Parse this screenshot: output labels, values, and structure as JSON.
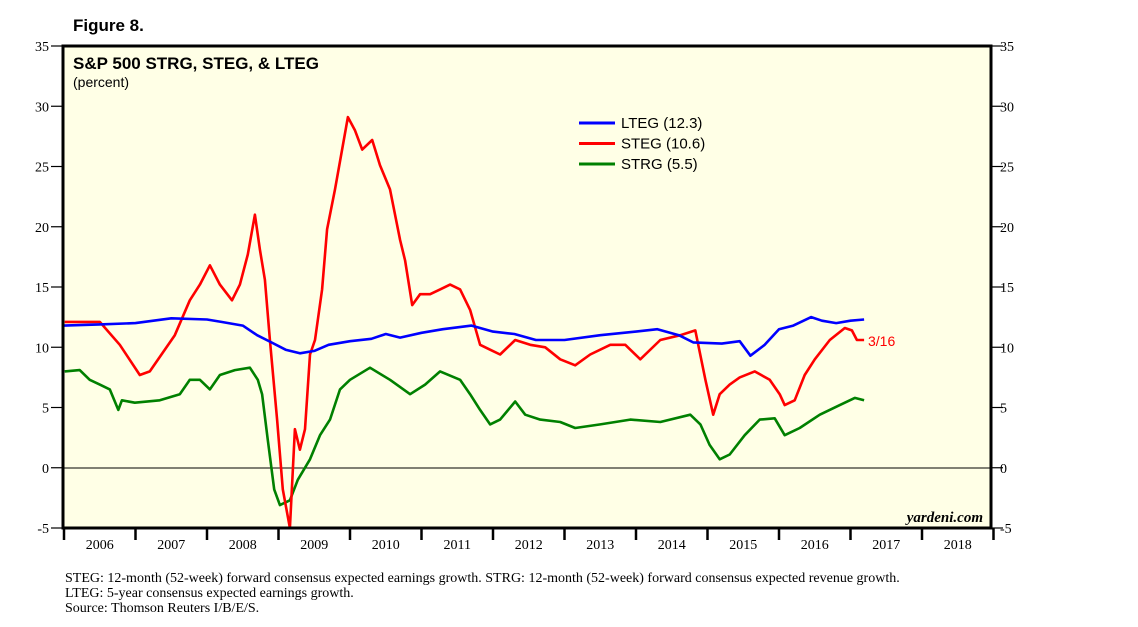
{
  "figure_label": "Figure 8.",
  "chart_data": {
    "type": "line",
    "title": "S&P 500 STRG, STEG, & LTEG",
    "subtitle": "(percent)",
    "ylim": [
      -5,
      35
    ],
    "yticks": [
      "35",
      "30",
      "25",
      "20",
      "15",
      "10",
      "5",
      "0",
      "-5"
    ],
    "ytick_values": [
      35,
      30,
      25,
      20,
      15,
      10,
      5,
      0,
      -5
    ],
    "xlim": [
      2006,
      2019
    ],
    "xtick_labels": [
      "2006",
      "2007",
      "2008",
      "2009",
      "2010",
      "2011",
      "2012",
      "2013",
      "2014",
      "2015",
      "2016",
      "2017",
      "2018"
    ],
    "zero_line": true,
    "legend_position": "top-center",
    "annotation": "3/16",
    "watermark": "yardeni.com",
    "series": [
      {
        "name": "LTEG",
        "legend": "LTEG (12.3)",
        "color": "#0000ff",
        "points": [
          [
            2006.0,
            11.8
          ],
          [
            2006.5,
            11.9
          ],
          [
            2007.0,
            12.0
          ],
          [
            2007.5,
            12.4
          ],
          [
            2008.0,
            12.3
          ],
          [
            2008.2,
            12.1
          ],
          [
            2008.5,
            11.8
          ],
          [
            2008.7,
            11.0
          ],
          [
            2008.9,
            10.4
          ],
          [
            2009.1,
            9.8
          ],
          [
            2009.3,
            9.5
          ],
          [
            2009.5,
            9.7
          ],
          [
            2009.7,
            10.2
          ],
          [
            2010.0,
            10.5
          ],
          [
            2010.3,
            10.7
          ],
          [
            2010.5,
            11.1
          ],
          [
            2010.7,
            10.8
          ],
          [
            2011.0,
            11.2
          ],
          [
            2011.3,
            11.5
          ],
          [
            2011.7,
            11.8
          ],
          [
            2012.0,
            11.3
          ],
          [
            2012.3,
            11.1
          ],
          [
            2012.6,
            10.6
          ],
          [
            2013.0,
            10.6
          ],
          [
            2013.5,
            11.0
          ],
          [
            2014.0,
            11.3
          ],
          [
            2014.3,
            11.5
          ],
          [
            2014.6,
            11.0
          ],
          [
            2014.8,
            10.4
          ],
          [
            2015.2,
            10.3
          ],
          [
            2015.45,
            10.5
          ],
          [
            2015.6,
            9.3
          ],
          [
            2015.8,
            10.2
          ],
          [
            2016.0,
            11.5
          ],
          [
            2016.2,
            11.8
          ],
          [
            2016.45,
            12.5
          ],
          [
            2016.6,
            12.2
          ],
          [
            2016.8,
            12.0
          ],
          [
            2017.0,
            12.2
          ],
          [
            2017.19,
            12.3
          ]
        ]
      },
      {
        "name": "STEG",
        "legend": "STEG (10.6)",
        "color": "#ff0000",
        "points": [
          [
            2006.01,
            12.1
          ],
          [
            2006.5,
            12.1
          ],
          [
            2006.78,
            10.2
          ],
          [
            2007.06,
            7.7
          ],
          [
            2007.2,
            8.0
          ],
          [
            2007.55,
            11.0
          ],
          [
            2007.76,
            13.9
          ],
          [
            2007.9,
            15.2
          ],
          [
            2008.04,
            16.8
          ],
          [
            2008.18,
            15.2
          ],
          [
            2008.35,
            13.9
          ],
          [
            2008.46,
            15.2
          ],
          [
            2008.57,
            17.7
          ],
          [
            2008.67,
            21.0
          ],
          [
            2008.74,
            18.1
          ],
          [
            2008.81,
            15.6
          ],
          [
            2008.88,
            10.6
          ],
          [
            2008.98,
            4.0
          ],
          [
            2009.06,
            -1.8
          ],
          [
            2009.16,
            -5.0
          ],
          [
            2009.23,
            3.2
          ],
          [
            2009.3,
            1.5
          ],
          [
            2009.37,
            3.2
          ],
          [
            2009.44,
            9.4
          ],
          [
            2009.51,
            10.6
          ],
          [
            2009.61,
            14.8
          ],
          [
            2009.68,
            19.8
          ],
          [
            2009.79,
            23.1
          ],
          [
            2009.89,
            26.4
          ],
          [
            2009.97,
            29.1
          ],
          [
            2010.07,
            28.0
          ],
          [
            2010.17,
            26.4
          ],
          [
            2010.31,
            27.2
          ],
          [
            2010.42,
            25.1
          ],
          [
            2010.56,
            23.1
          ],
          [
            2010.7,
            18.9
          ],
          [
            2010.77,
            17.2
          ],
          [
            2010.87,
            13.5
          ],
          [
            2010.98,
            14.4
          ],
          [
            2011.12,
            14.4
          ],
          [
            2011.26,
            14.8
          ],
          [
            2011.4,
            15.2
          ],
          [
            2011.54,
            14.8
          ],
          [
            2011.68,
            13.1
          ],
          [
            2011.82,
            10.2
          ],
          [
            2011.96,
            9.8
          ],
          [
            2012.1,
            9.4
          ],
          [
            2012.31,
            10.6
          ],
          [
            2012.52,
            10.2
          ],
          [
            2012.73,
            10.0
          ],
          [
            2012.94,
            9.0
          ],
          [
            2013.15,
            8.5
          ],
          [
            2013.36,
            9.4
          ],
          [
            2013.64,
            10.2
          ],
          [
            2013.85,
            10.2
          ],
          [
            2014.06,
            9.0
          ],
          [
            2014.34,
            10.6
          ],
          [
            2014.62,
            11.0
          ],
          [
            2014.83,
            11.4
          ],
          [
            2014.97,
            7.3
          ],
          [
            2015.08,
            4.4
          ],
          [
            2015.17,
            6.1
          ],
          [
            2015.31,
            6.9
          ],
          [
            2015.45,
            7.5
          ],
          [
            2015.66,
            8.0
          ],
          [
            2015.87,
            7.3
          ],
          [
            2016.01,
            6.1
          ],
          [
            2016.08,
            5.2
          ],
          [
            2016.22,
            5.6
          ],
          [
            2016.36,
            7.7
          ],
          [
            2016.5,
            9.0
          ],
          [
            2016.71,
            10.6
          ],
          [
            2016.92,
            11.6
          ],
          [
            2017.02,
            11.4
          ],
          [
            2017.09,
            10.6
          ],
          [
            2017.19,
            10.6
          ]
        ]
      },
      {
        "name": "STRG",
        "legend": "STRG (5.5)",
        "color": "#008000",
        "points": [
          [
            2006.01,
            8.0
          ],
          [
            2006.22,
            8.1
          ],
          [
            2006.36,
            7.3
          ],
          [
            2006.5,
            6.9
          ],
          [
            2006.64,
            6.5
          ],
          [
            2006.76,
            4.8
          ],
          [
            2006.81,
            5.6
          ],
          [
            2006.99,
            5.4
          ],
          [
            2007.34,
            5.6
          ],
          [
            2007.62,
            6.1
          ],
          [
            2007.76,
            7.3
          ],
          [
            2007.9,
            7.3
          ],
          [
            2008.04,
            6.5
          ],
          [
            2008.18,
            7.7
          ],
          [
            2008.39,
            8.1
          ],
          [
            2008.6,
            8.3
          ],
          [
            2008.71,
            7.3
          ],
          [
            2008.77,
            6.1
          ],
          [
            2008.85,
            2.3
          ],
          [
            2008.94,
            -1.8
          ],
          [
            2009.02,
            -3.1
          ],
          [
            2009.16,
            -2.7
          ],
          [
            2009.27,
            -1.0
          ],
          [
            2009.44,
            0.7
          ],
          [
            2009.58,
            2.7
          ],
          [
            2009.72,
            4.0
          ],
          [
            2009.86,
            6.5
          ],
          [
            2010.0,
            7.3
          ],
          [
            2010.28,
            8.3
          ],
          [
            2010.56,
            7.3
          ],
          [
            2010.84,
            6.1
          ],
          [
            2011.05,
            6.9
          ],
          [
            2011.26,
            8.0
          ],
          [
            2011.54,
            7.3
          ],
          [
            2011.68,
            6.1
          ],
          [
            2011.82,
            4.8
          ],
          [
            2011.96,
            3.6
          ],
          [
            2012.1,
            4.0
          ],
          [
            2012.31,
            5.5
          ],
          [
            2012.45,
            4.4
          ],
          [
            2012.66,
            4.0
          ],
          [
            2012.94,
            3.8
          ],
          [
            2013.15,
            3.3
          ],
          [
            2013.5,
            3.6
          ],
          [
            2013.92,
            4.0
          ],
          [
            2014.34,
            3.8
          ],
          [
            2014.76,
            4.4
          ],
          [
            2014.9,
            3.6
          ],
          [
            2015.03,
            1.9
          ],
          [
            2015.17,
            0.7
          ],
          [
            2015.31,
            1.1
          ],
          [
            2015.52,
            2.7
          ],
          [
            2015.73,
            4.0
          ],
          [
            2015.94,
            4.1
          ],
          [
            2016.08,
            2.7
          ],
          [
            2016.29,
            3.3
          ],
          [
            2016.57,
            4.4
          ],
          [
            2016.85,
            5.2
          ],
          [
            2017.06,
            5.8
          ],
          [
            2017.19,
            5.6
          ]
        ]
      }
    ]
  },
  "footnotes": [
    "STEG: 12-month (52-week) forward consensus expected earnings growth. STRG: 12-month (52-week) forward consensus expected revenue growth.",
    "LTEG: 5-year consensus expected earnings growth.",
    "Source: Thomson Reuters I/B/E/S."
  ]
}
